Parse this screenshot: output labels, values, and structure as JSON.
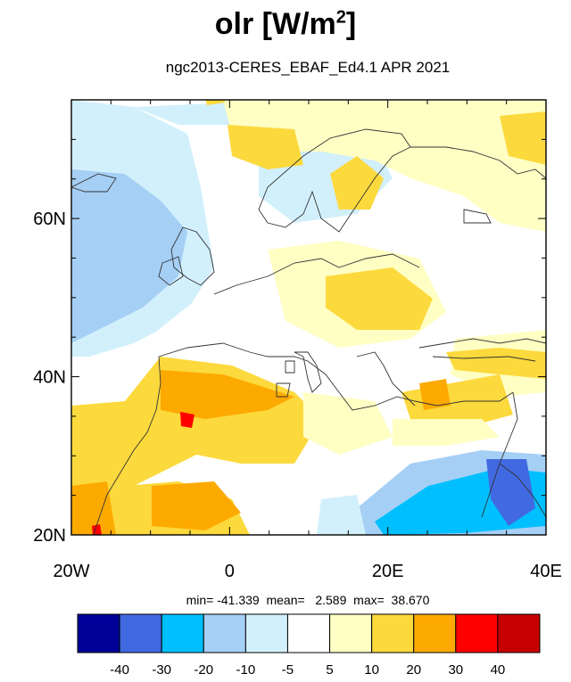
{
  "title": {
    "main": "olr [W/m",
    "sup": "2",
    "close": "]"
  },
  "subtitle": "ngc2013-CERES_EBAF_Ed4.1  APR 2021",
  "map": {
    "lon_range": [
      -20,
      40
    ],
    "lat_range": [
      20,
      75
    ],
    "lon_ticks": [
      {
        "value": -20,
        "label": "20W"
      },
      {
        "value": 0,
        "label": "0"
      },
      {
        "value": 20,
        "label": "20E"
      },
      {
        "value": 40,
        "label": "40E"
      }
    ],
    "lat_ticks": [
      {
        "value": 20,
        "label": "20N"
      },
      {
        "value": 40,
        "label": "40N"
      },
      {
        "value": 60,
        "label": "60N"
      }
    ]
  },
  "stats": {
    "text": "min= -41.339  mean=   2.589  max=  38.670"
  },
  "colorbar": {
    "colors": [
      "#000099",
      "#4169e1",
      "#00bfff",
      "#a6cff5",
      "#d2f0fb",
      "#ffffff",
      "#ffffc4",
      "#fcd93c",
      "#fdaa00",
      "#ff0000",
      "#c60000"
    ],
    "labels": [
      "-40",
      "-30",
      "-20",
      "-10",
      "-5",
      "5",
      "10",
      "20",
      "30",
      "40"
    ]
  }
}
